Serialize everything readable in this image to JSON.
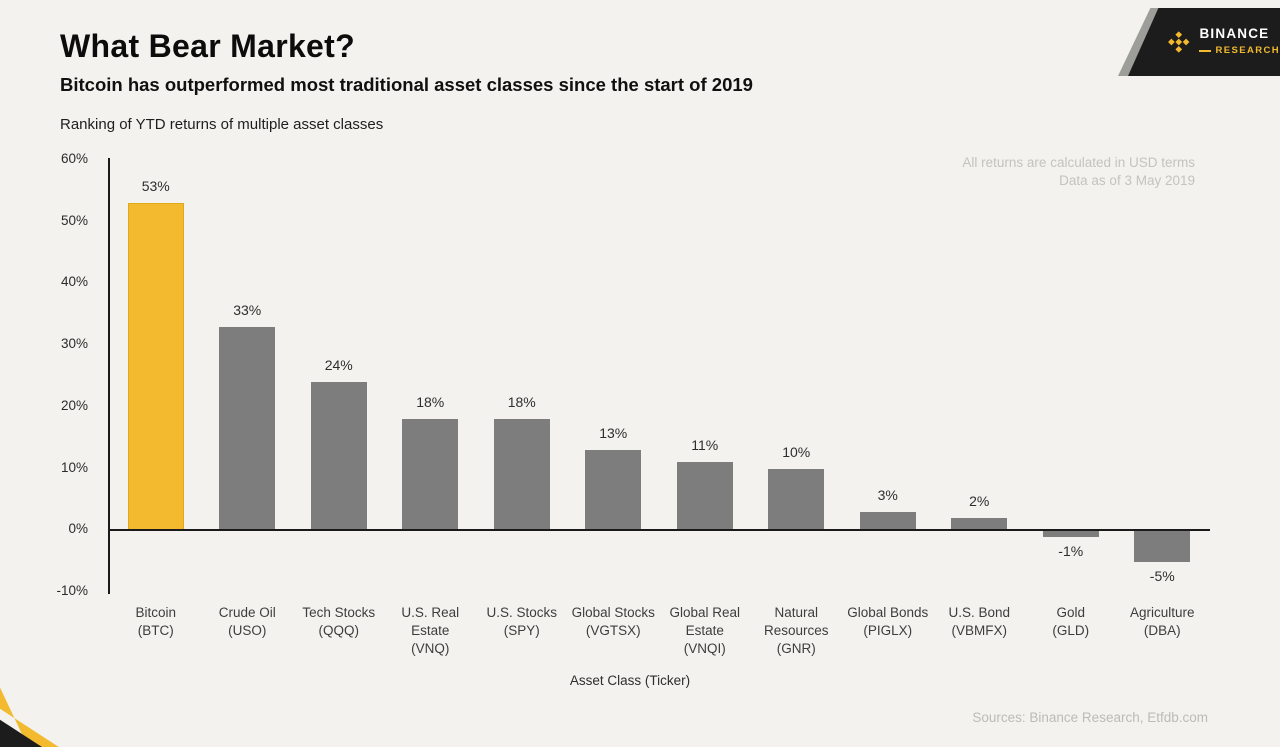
{
  "header": {
    "title": "What Bear Market?",
    "subtitle": "Bitcoin has outperformed most traditional asset classes since the start of 2019",
    "caption": "Ranking of YTD returns of multiple asset classes"
  },
  "brand": {
    "name": "BINANCE",
    "sub": "RESEARCH",
    "logo_icon": "binance-diamond-logo",
    "badge_bg": "#1c1c1c",
    "accent": "#F3BA2F"
  },
  "notes": {
    "line1": "All returns are calculated in USD terms",
    "line2": "Data as of 3 May 2019"
  },
  "footer": {
    "source": "Sources: Binance Research, Etfdb.com"
  },
  "chart_data": {
    "type": "bar",
    "title": "Ranking of YTD returns of multiple asset classes",
    "xlabel": "Asset Class (Ticker)",
    "ylabel": "",
    "ylim": [
      -10,
      60
    ],
    "ytick_step": 10,
    "ytick_labels": [
      "60%",
      "50%",
      "40%",
      "30%",
      "20%",
      "10%",
      "0%",
      "-10%"
    ],
    "grid": false,
    "legend": false,
    "categories": [
      "Bitcoin (BTC)",
      "Crude Oil (USO)",
      "Tech Stocks (QQQ)",
      "U.S. Real Estate (VNQ)",
      "U.S. Stocks (SPY)",
      "Global Stocks (VGTSX)",
      "Global Real Estate (VNQI)",
      "Natural Resources (GNR)",
      "Global Bonds (PIGLX)",
      "U.S. Bond (VBMFX)",
      "Gold (GLD)",
      "Agriculture (DBA)"
    ],
    "category_lines": [
      [
        "Bitcoin",
        "(BTC)"
      ],
      [
        "Crude Oil",
        "(USO)"
      ],
      [
        "Tech Stocks",
        "(QQQ)"
      ],
      [
        "U.S. Real",
        "Estate",
        "(VNQ)"
      ],
      [
        "U.S. Stocks",
        "(SPY)"
      ],
      [
        "Global Stocks",
        "(VGTSX)"
      ],
      [
        "Global Real",
        "Estate",
        "(VNQI)"
      ],
      [
        "Natural",
        "Resources",
        "(GNR)"
      ],
      [
        "Global Bonds",
        "(PIGLX)"
      ],
      [
        "U.S. Bond",
        "(VBMFX)"
      ],
      [
        "Gold",
        "(GLD)"
      ],
      [
        "Agriculture",
        "(DBA)"
      ]
    ],
    "tickers": [
      "BTC",
      "USO",
      "QQQ",
      "VNQ",
      "SPY",
      "VGTSX",
      "VNQI",
      "GNR",
      "PIGLX",
      "VBMFX",
      "GLD",
      "DBA"
    ],
    "values": [
      53,
      33,
      24,
      18,
      18,
      13,
      11,
      10,
      3,
      2,
      -1,
      -5
    ],
    "value_labels": [
      "53%",
      "33%",
      "24%",
      "18%",
      "18%",
      "13%",
      "11%",
      "10%",
      "3%",
      "2%",
      "-1%",
      "-5%"
    ],
    "highlight_index": 0,
    "colors": {
      "highlight": "#F3BA2F",
      "highlight_border": "#DFA91C",
      "bar": "#7d7d7d",
      "axis": "#1a1a1a",
      "background": "#f3f2ee"
    }
  }
}
